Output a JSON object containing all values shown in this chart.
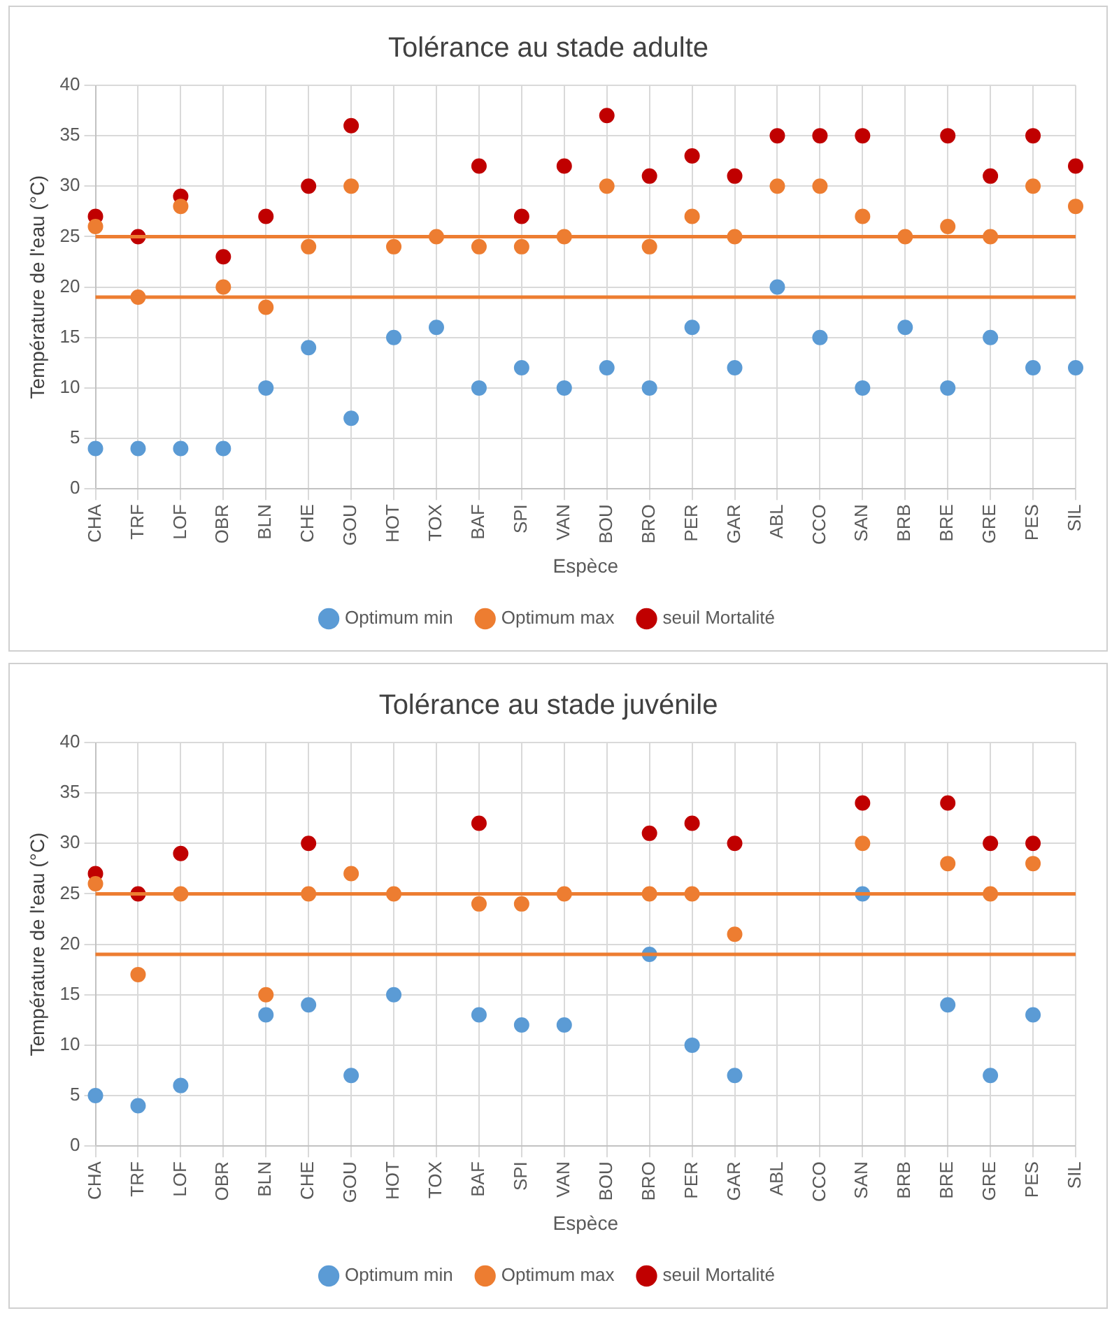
{
  "chart_data": [
    {
      "type": "scatter",
      "title": "Tolérance au stade adulte",
      "xlabel": "Espèce",
      "ylabel": "Température de l'eau (°C)",
      "categories": [
        "CHA",
        "TRF",
        "LOF",
        "OBR",
        "BLN",
        "CHE",
        "GOU",
        "HOT",
        "TOX",
        "BAF",
        "SPI",
        "VAN",
        "BOU",
        "BRO",
        "PER",
        "GAR",
        "ABL",
        "CCO",
        "SAN",
        "BRB",
        "BRE",
        "GRE",
        "PES",
        "SIL"
      ],
      "series": [
        {
          "name": "Optimum min",
          "color": "#5b9bd5",
          "values": [
            4,
            4,
            4,
            4,
            10,
            14,
            7,
            15,
            16,
            10,
            12,
            10,
            12,
            10,
            16,
            12,
            20,
            15,
            10,
            16,
            10,
            15,
            12,
            12
          ]
        },
        {
          "name": "Optimum max",
          "color": "#ed7d31",
          "values": [
            26,
            19,
            28,
            20,
            18,
            24,
            30,
            24,
            25,
            24,
            24,
            25,
            30,
            24,
            27,
            25,
            30,
            30,
            27,
            25,
            26,
            25,
            30,
            28
          ]
        },
        {
          "name": "seuil Mortalité",
          "color": "#c00000",
          "values": [
            27,
            25,
            29,
            23,
            27,
            30,
            36,
            null,
            null,
            32,
            27,
            32,
            37,
            31,
            33,
            31,
            35,
            35,
            35,
            null,
            35,
            31,
            35,
            32
          ]
        }
      ],
      "ylim": [
        0,
        40
      ],
      "yticks": [
        0,
        5,
        10,
        15,
        20,
        25,
        30,
        35,
        40
      ],
      "grid": true,
      "legend": "bottom",
      "marker": "circle",
      "ref_lines": [
        {
          "axis": "y",
          "value": 25,
          "label": null,
          "color": "#ed7d31"
        },
        {
          "axis": "y",
          "value": 19,
          "label": null,
          "color": "#ed7d31"
        }
      ]
    },
    {
      "type": "scatter",
      "title": "Tolérance au stade juvénile",
      "xlabel": "Espèce",
      "ylabel": "Température de l'eau (°C)",
      "categories": [
        "CHA",
        "TRF",
        "LOF",
        "OBR",
        "BLN",
        "CHE",
        "GOU",
        "HOT",
        "TOX",
        "BAF",
        "SPI",
        "VAN",
        "BOU",
        "BRO",
        "PER",
        "GAR",
        "ABL",
        "CCO",
        "SAN",
        "BRB",
        "BRE",
        "GRE",
        "PES",
        "SIL"
      ],
      "series": [
        {
          "name": "Optimum min",
          "color": "#5b9bd5",
          "values": [
            5,
            4,
            6,
            null,
            13,
            14,
            7,
            15,
            null,
            13,
            12,
            12,
            null,
            19,
            10,
            7,
            null,
            null,
            25,
            null,
            14,
            7,
            13,
            null
          ]
        },
        {
          "name": "Optimum max",
          "color": "#ed7d31",
          "values": [
            26,
            17,
            25,
            null,
            15,
            25,
            27,
            25,
            null,
            24,
            24,
            25,
            null,
            25,
            25,
            21,
            null,
            null,
            30,
            null,
            28,
            25,
            28,
            null
          ]
        },
        {
          "name": "seuil Mortalité",
          "color": "#c00000",
          "values": [
            27,
            25,
            29,
            null,
            null,
            30,
            null,
            null,
            null,
            32,
            null,
            null,
            null,
            31,
            32,
            30,
            null,
            null,
            34,
            null,
            34,
            30,
            30,
            null
          ]
        }
      ],
      "ylim": [
        0,
        40
      ],
      "yticks": [
        0,
        5,
        10,
        15,
        20,
        25,
        30,
        35,
        40
      ],
      "grid": true,
      "legend": "bottom",
      "marker": "circle",
      "ref_lines": [
        {
          "axis": "y",
          "value": 25,
          "label": null,
          "color": "#ed7d31"
        },
        {
          "axis": "y",
          "value": 19,
          "label": null,
          "color": "#ed7d31"
        }
      ]
    }
  ]
}
